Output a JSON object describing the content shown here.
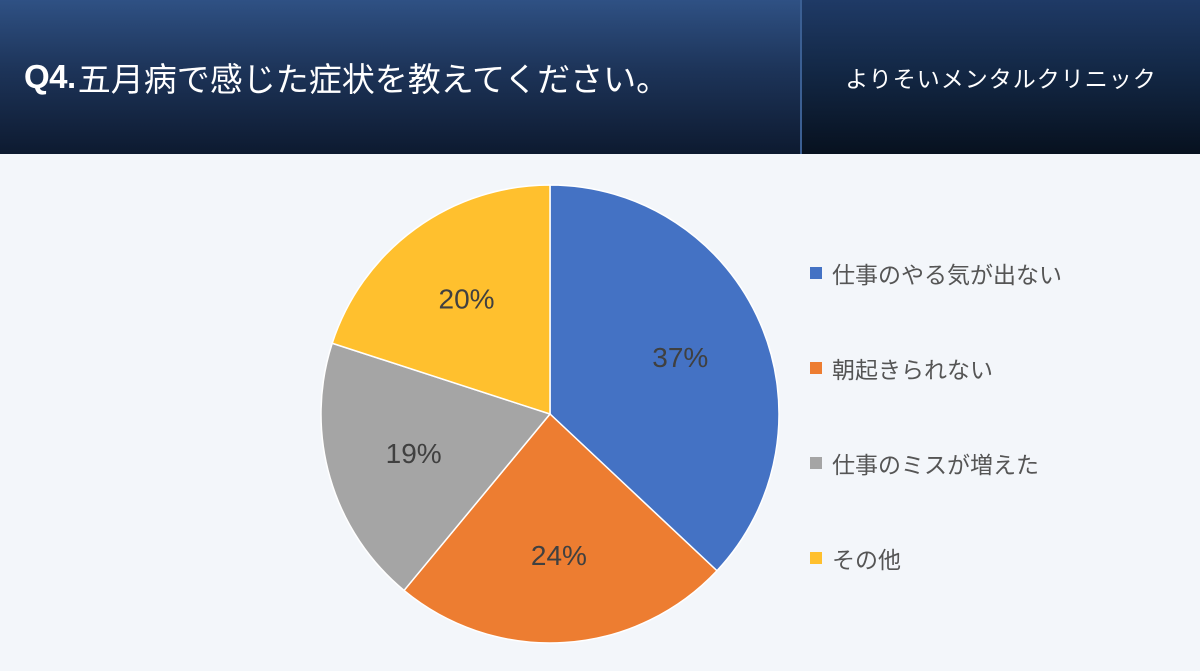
{
  "header": {
    "title_prefix": "Q4.",
    "title_text": "五月病で感じた症状を教えてください。",
    "clinic_name": "よりそいメンタルクリニック"
  },
  "chart_data": {
    "type": "pie",
    "title": "",
    "legend_position": "right",
    "slices": [
      {
        "label": "仕事のやる気が出ない",
        "value": 37,
        "display": "37%",
        "color": "#4472c4"
      },
      {
        "label": "朝起きられない",
        "value": 24,
        "display": "24%",
        "color": "#ed7d31"
      },
      {
        "label": "仕事のミスが増えた",
        "value": 19,
        "display": "19%",
        "color": "#a5a5a5"
      },
      {
        "label": "その他",
        "value": 20,
        "display": "20%",
        "color": "#ffc02e"
      }
    ]
  }
}
